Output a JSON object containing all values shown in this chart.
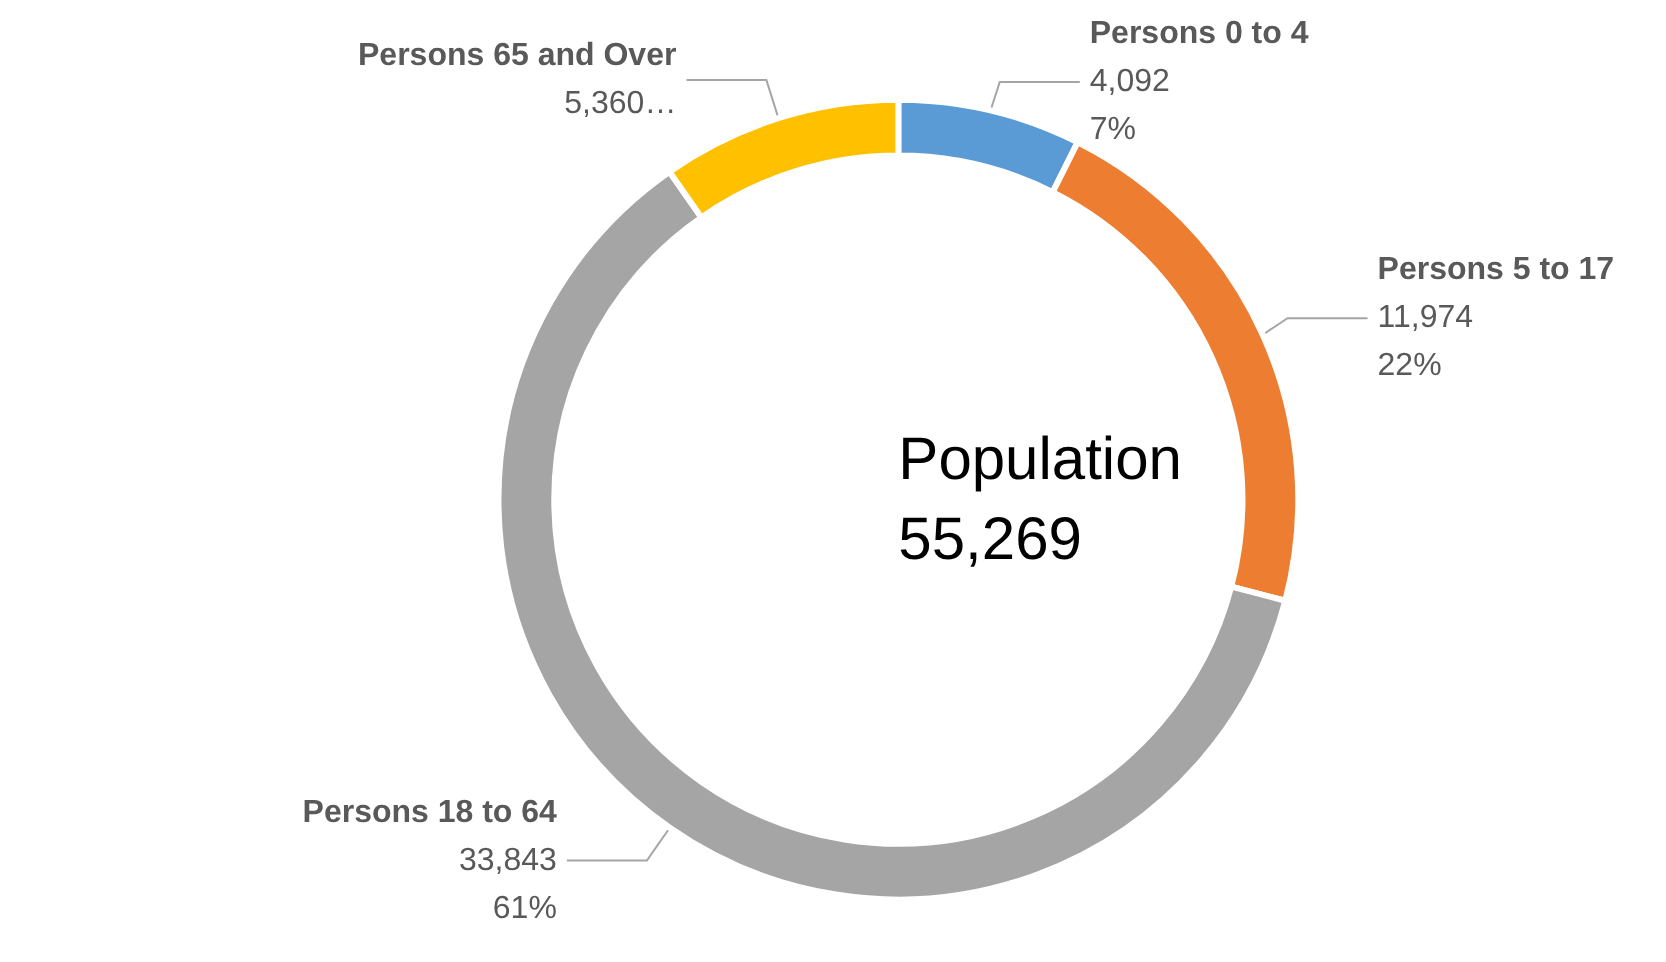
{
  "chart_data": {
    "type": "donut",
    "categories": [
      "Persons 0 to 4",
      "Persons 5 to 17",
      "Persons 18 to 64",
      "Persons 65 and Over"
    ],
    "values": [
      4092,
      11974,
      33843,
      5360
    ],
    "colors": [
      "#5b9bd5",
      "#ed7d31",
      "#a5a5a5",
      "#ffc000"
    ],
    "value_labels": [
      "4,092\n7%",
      "11,974\n22%",
      "33,843\n61%",
      "5,360…"
    ],
    "annotations": [
      "Population",
      "55,269"
    ]
  }
}
